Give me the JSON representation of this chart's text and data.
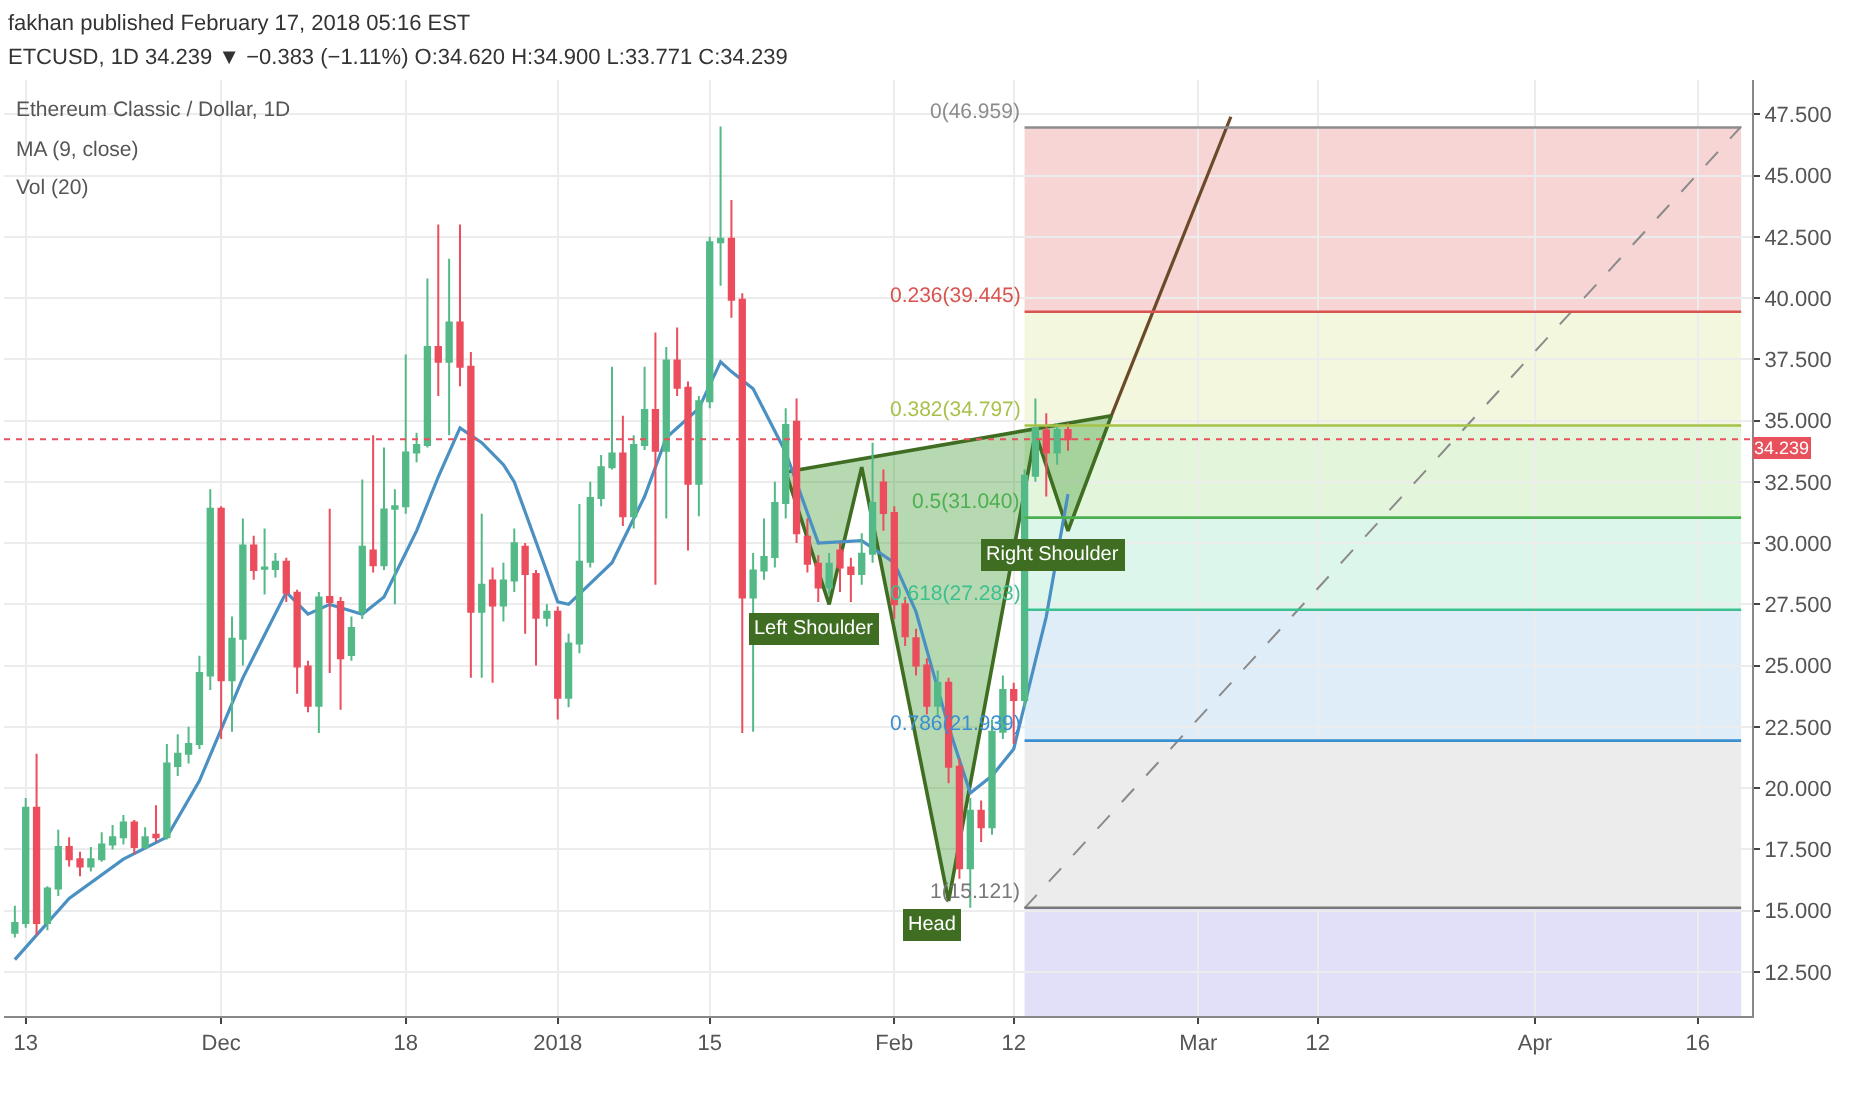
{
  "chart_data": {
    "type": "candlestick",
    "title": "fakhan published February 17, 2018 05:16 EST",
    "subtitle": "ETCUSD, 1D 34.239 ▼ −0.383 (−1.11%) O:34.620 H:34.900 L:33.771 C:34.239",
    "x": [
      "2017-11-12",
      "2017-11-13",
      "2017-11-14",
      "2017-11-15",
      "2017-11-16",
      "2017-11-17",
      "2017-11-18",
      "2017-11-19",
      "2017-11-20",
      "2017-11-21",
      "2017-11-22",
      "2017-11-23",
      "2017-11-24",
      "2017-11-25",
      "2017-11-26",
      "2017-11-27",
      "2017-11-28",
      "2017-11-29",
      "2017-11-30",
      "2017-12-01",
      "2017-12-02",
      "2017-12-03",
      "2017-12-04",
      "2017-12-05",
      "2017-12-06",
      "2017-12-07",
      "2017-12-08",
      "2017-12-09",
      "2017-12-10",
      "2017-12-11",
      "2017-12-12",
      "2017-12-13",
      "2017-12-14",
      "2017-12-15",
      "2017-12-16",
      "2017-12-17",
      "2017-12-18",
      "2017-12-19",
      "2017-12-20",
      "2017-12-21",
      "2017-12-22",
      "2017-12-23",
      "2017-12-24",
      "2017-12-25",
      "2017-12-26",
      "2017-12-27",
      "2017-12-28",
      "2017-12-29",
      "2017-12-30",
      "2017-12-31",
      "2018-01-01",
      "2018-01-02",
      "2018-01-03",
      "2018-01-04",
      "2018-01-05",
      "2018-01-06",
      "2018-01-07",
      "2018-01-08",
      "2018-01-09",
      "2018-01-10",
      "2018-01-11",
      "2018-01-12",
      "2018-01-13",
      "2018-01-14",
      "2018-01-15",
      "2018-01-16",
      "2018-01-17",
      "2018-01-18",
      "2018-01-19",
      "2018-01-20",
      "2018-01-21",
      "2018-01-22",
      "2018-01-23",
      "2018-01-24",
      "2018-01-25",
      "2018-01-26",
      "2018-01-27",
      "2018-01-28",
      "2018-01-29",
      "2018-01-30",
      "2018-01-31",
      "2018-02-01",
      "2018-02-02",
      "2018-02-03",
      "2018-02-04",
      "2018-02-05",
      "2018-02-06",
      "2018-02-07",
      "2018-02-08",
      "2018-02-09",
      "2018-02-10",
      "2018-02-11",
      "2018-02-12",
      "2018-02-13",
      "2018-02-14",
      "2018-02-15",
      "2018-02-16",
      "2018-02-17"
    ],
    "ohlc": [
      [
        14.1,
        15.2,
        13.9,
        14.5
      ],
      [
        14.5,
        19.6,
        14.3,
        19.2
      ],
      [
        19.2,
        21.4,
        14.0,
        14.5
      ],
      [
        14.5,
        16.0,
        14.2,
        15.9
      ],
      [
        15.9,
        18.3,
        15.6,
        17.6
      ],
      [
        17.6,
        18.0,
        16.8,
        17.1
      ],
      [
        17.1,
        17.4,
        16.4,
        16.8
      ],
      [
        16.8,
        17.6,
        16.6,
        17.1
      ],
      [
        17.1,
        18.2,
        17.0,
        17.7
      ],
      [
        17.7,
        18.5,
        17.5,
        18.0
      ],
      [
        18.0,
        18.9,
        17.7,
        18.6
      ],
      [
        18.6,
        18.7,
        17.3,
        17.6
      ],
      [
        17.6,
        18.4,
        17.5,
        18.0
      ],
      [
        18.1,
        19.3,
        17.8,
        18.0
      ],
      [
        18.0,
        21.8,
        17.9,
        21.0
      ],
      [
        20.9,
        22.2,
        20.5,
        21.4
      ],
      [
        21.4,
        22.5,
        21.0,
        21.8
      ],
      [
        21.8,
        25.4,
        21.6,
        24.7
      ],
      [
        24.6,
        32.2,
        24.0,
        31.4
      ],
      [
        31.4,
        31.5,
        22.0,
        24.4
      ],
      [
        24.4,
        27.0,
        22.3,
        26.1
      ],
      [
        26.1,
        31.0,
        25.0,
        29.9
      ],
      [
        29.9,
        30.3,
        28.5,
        28.9
      ],
      [
        28.95,
        30.6,
        27.9,
        29.0
      ],
      [
        28.94,
        29.6,
        28.6,
        29.24
      ],
      [
        29.24,
        29.4,
        27.6,
        27.97
      ],
      [
        27.97,
        28.1,
        23.85,
        24.96
      ],
      [
        24.96,
        25.2,
        23.1,
        23.36
      ],
      [
        23.36,
        28.0,
        22.25,
        27.78
      ],
      [
        27.8,
        31.4,
        24.7,
        27.6
      ],
      [
        27.6,
        27.8,
        23.2,
        25.3
      ],
      [
        25.43,
        27.0,
        25.2,
        26.53
      ],
      [
        27.2,
        32.6,
        26.9,
        29.85
      ],
      [
        29.7,
        34.4,
        28.8,
        29.1
      ],
      [
        29.1,
        33.9,
        28.9,
        31.37
      ],
      [
        31.4,
        32.2,
        27.5,
        31.5
      ],
      [
        31.5,
        37.7,
        31.2,
        33.7
      ],
      [
        33.7,
        34.5,
        33.3,
        34.0
      ],
      [
        34.0,
        40.8,
        33.9,
        38.0
      ],
      [
        38.0,
        43.0,
        36.0,
        37.4
      ],
      [
        37.4,
        41.6,
        34.4,
        39.0
      ],
      [
        39.0,
        43.0,
        36.4,
        37.2
      ],
      [
        37.2,
        37.8,
        24.5,
        27.2
      ],
      [
        27.2,
        31.2,
        24.5,
        28.3
      ],
      [
        28.47,
        29.0,
        24.3,
        27.45
      ],
      [
        27.45,
        29.2,
        26.8,
        28.47
      ],
      [
        28.47,
        30.6,
        28.0,
        29.99
      ],
      [
        29.85,
        30.0,
        26.3,
        28.74
      ],
      [
        28.74,
        28.9,
        25.0,
        26.95
      ],
      [
        26.95,
        27.5,
        26.6,
        27.2
      ],
      [
        27.2,
        27.4,
        22.8,
        23.69
      ],
      [
        23.69,
        26.3,
        23.3,
        25.9
      ],
      [
        25.9,
        31.6,
        25.5,
        29.24
      ],
      [
        29.24,
        32.5,
        29.0,
        31.84
      ],
      [
        31.84,
        33.6,
        31.5,
        33.1
      ],
      [
        33.1,
        37.2,
        33.0,
        33.66
      ],
      [
        33.66,
        35.2,
        30.7,
        31.1
      ],
      [
        31.1,
        34.4,
        30.6,
        34.0
      ],
      [
        34.0,
        37.2,
        33.8,
        35.43
      ],
      [
        35.43,
        38.6,
        28.3,
        33.77
      ],
      [
        33.77,
        38.0,
        31.0,
        37.45
      ],
      [
        37.45,
        38.8,
        36.0,
        36.34
      ],
      [
        36.34,
        36.6,
        29.7,
        32.42
      ],
      [
        32.42,
        36.0,
        31.1,
        35.79
      ],
      [
        35.79,
        42.5,
        35.5,
        42.28
      ],
      [
        42.28,
        47.0,
        40.5,
        42.42
      ],
      [
        42.42,
        44.0,
        39.2,
        39.93
      ],
      [
        39.93,
        40.2,
        22.25,
        27.78
      ],
      [
        27.78,
        29.6,
        22.3,
        28.88
      ],
      [
        28.88,
        31.0,
        28.5,
        29.43
      ],
      [
        29.43,
        32.5,
        29.0,
        31.64
      ],
      [
        31.64,
        35.5,
        31.0,
        34.82
      ],
      [
        34.95,
        35.9,
        30.0,
        30.4
      ],
      [
        30.26,
        31.0,
        28.8,
        29.16
      ],
      [
        29.16,
        29.5,
        27.6,
        28.19
      ],
      [
        28.19,
        29.6,
        27.9,
        29.16
      ],
      [
        29.7,
        30.0,
        28.0,
        29.0
      ],
      [
        29.0,
        29.4,
        27.6,
        28.74
      ],
      [
        28.74,
        30.4,
        28.3,
        29.57
      ],
      [
        29.57,
        34.1,
        29.2,
        31.64
      ],
      [
        32.47,
        33.0,
        30.5,
        31.23
      ],
      [
        31.23,
        31.5,
        26.9,
        27.5
      ],
      [
        27.5,
        27.8,
        25.8,
        26.2
      ],
      [
        26.12,
        26.5,
        24.6,
        25.0
      ],
      [
        25.0,
        25.3,
        23.0,
        23.36
      ],
      [
        23.36,
        24.8,
        22.9,
        24.3
      ],
      [
        24.3,
        24.5,
        20.2,
        20.87
      ],
      [
        20.87,
        21.2,
        16.3,
        16.73
      ],
      [
        16.73,
        19.6,
        15.121,
        19.08
      ],
      [
        19.08,
        19.5,
        17.8,
        18.4
      ],
      [
        18.4,
        22.8,
        18.1,
        22.3
      ],
      [
        22.3,
        24.6,
        22.0,
        24.0
      ],
      [
        24.0,
        24.3,
        21.8,
        23.6
      ],
      [
        23.6,
        33.0,
        23.3,
        32.75
      ],
      [
        32.75,
        35.9,
        32.5,
        34.7
      ],
      [
        34.6,
        35.3,
        31.9,
        33.7
      ],
      [
        33.7,
        34.9,
        33.2,
        34.62
      ],
      [
        34.62,
        34.9,
        33.771,
        34.239
      ]
    ],
    "series": [
      {
        "type": "line",
        "color": "#4a90c2",
        "x": [
          "2017-11-12",
          "2017-11-17",
          "2017-11-22",
          "2017-11-26",
          "2017-11-29",
          "2017-12-03",
          "2017-12-07",
          "2017-12-09",
          "2017-12-11",
          "2017-12-14",
          "2017-12-16",
          "2017-12-19",
          "2017-12-21",
          "2017-12-23",
          "2017-12-25",
          "2017-12-27",
          "2017-12-28",
          "2018-01-01",
          "2018-01-02",
          "2018-01-06",
          "2018-01-09",
          "2018-01-11",
          "2018-01-14",
          "2018-01-16",
          "2018-01-17",
          "2018-01-19",
          "2018-01-22",
          "2018-01-25",
          "2018-01-29",
          "2018-02-01",
          "2018-02-03",
          "2018-02-06",
          "2018-02-08",
          "2018-02-10",
          "2018-02-12",
          "2018-02-15",
          "2018-02-17"
        ],
        "values": [
          13.0,
          15.5,
          17.1,
          18.0,
          20.3,
          24.5,
          28.0,
          27.1,
          27.5,
          27.1,
          27.8,
          30.5,
          32.7,
          34.7,
          34.1,
          33.2,
          32.5,
          27.6,
          27.5,
          29.2,
          31.9,
          34.3,
          35.5,
          37.4,
          37.0,
          36.3,
          33.7,
          30.0,
          30.1,
          29.2,
          27.2,
          22.5,
          19.8,
          20.5,
          21.6,
          27.0,
          32.0
        ]
      },
      {
        "type": "area",
        "color": "#3f6e22",
        "x": [
          "2018-01-22",
          "2018-01-26",
          "2018-01-29",
          "2018-02-06",
          "2018-02-14",
          "2018-02-17",
          "2018-02-21",
          "2018-01-22"
        ],
        "values": [
          32.9,
          27.5,
          33.1,
          15.4,
          34.5,
          30.5,
          35.2,
          32.9
        ]
      },
      {
        "type": "line",
        "color": "#6b4a2a",
        "x": [
          "2018-02-21",
          "2018-03-04"
        ],
        "values": [
          35.2,
          47.4
        ]
      },
      {
        "type": "line",
        "color": "#8a8a8a",
        "line_style": "dashed",
        "x": [
          "2018-02-13",
          "2018-04-20"
        ],
        "values": [
          15.1,
          47.0
        ]
      }
    ],
    "bands": [
      {
        "axis": "y",
        "from": 46.959,
        "to": 39.445,
        "color": "#f4c7c7"
      },
      {
        "axis": "y",
        "from": 39.445,
        "to": 34.797,
        "color": "#eef4d2"
      },
      {
        "axis": "y",
        "from": 34.797,
        "to": 31.04,
        "color": "#d9f2cf"
      },
      {
        "axis": "y",
        "from": 31.04,
        "to": 27.283,
        "color": "#d2f3e6"
      },
      {
        "axis": "y",
        "from": 27.283,
        "to": 21.939,
        "color": "#d4e7f5"
      },
      {
        "axis": "y",
        "from": 21.939,
        "to": 15.121,
        "color": "#e6e6e6"
      },
      {
        "axis": "y",
        "from": 15.121,
        "to": 10.7,
        "color": "#d7d5f5"
      }
    ],
    "ref_lines": [
      {
        "axis": "y",
        "value": 46.959,
        "label": "0(46.959)",
        "color": "#8c8c8c"
      },
      {
        "axis": "y",
        "value": 39.445,
        "label": "0.236(39.445)",
        "color": "#d9534f"
      },
      {
        "axis": "y",
        "value": 34.797,
        "label": "0.382(34.797)",
        "color": "#a6c24a"
      },
      {
        "axis": "y",
        "value": 31.04,
        "label": "0.5(31.040)",
        "color": "#4caf50"
      },
      {
        "axis": "y",
        "value": 27.283,
        "label": "0.618(27.283)",
        "color": "#3dbf8f"
      },
      {
        "axis": "y",
        "value": 21.939,
        "label": "0.786(21.939)",
        "color": "#3a8fd0"
      },
      {
        "axis": "y",
        "value": 15.121,
        "label": "1(15.121)",
        "color": "#787878"
      },
      {
        "axis": "y",
        "value": 34.239,
        "label": "34.239",
        "color": "#e8505b",
        "line_style": "dotted"
      }
    ],
    "annotations": [
      "Ethereum Classic / Dollar, 1D",
      "MA (9, close)",
      "Vol (20)",
      {
        "text": "Left Shoulder",
        "x": "2018-01-26",
        "y": 27.5
      },
      {
        "text": "Head",
        "x": "2018-02-06",
        "y": 15.4
      },
      {
        "text": "Right Shoulder",
        "x": "2018-02-17",
        "y": 30.5
      }
    ],
    "xlim": [
      "2017-11-11",
      "2018-04-21"
    ],
    "xticks": [
      {
        "value": "2017-11-13",
        "label": "13"
      },
      {
        "value": "2017-12-01",
        "label": "Dec"
      },
      {
        "value": "2017-12-18",
        "label": "18"
      },
      {
        "value": "2018-01-01",
        "label": "2018"
      },
      {
        "value": "2018-01-15",
        "label": "15"
      },
      {
        "value": "2018-02-01",
        "label": "Feb"
      },
      {
        "value": "2018-02-12",
        "label": "12"
      },
      {
        "value": "2018-03-01",
        "label": "Mar"
      },
      {
        "value": "2018-03-12",
        "label": "12"
      },
      {
        "value": "2018-04-01",
        "label": "Apr"
      },
      {
        "value": "2018-04-16",
        "label": "16"
      }
    ],
    "ylim": [
      10.7,
      48.9
    ],
    "yticks": [
      {
        "value": 12.5,
        "label": "12.500"
      },
      {
        "value": 15,
        "label": "15.000"
      },
      {
        "value": 17.5,
        "label": "17.500"
      },
      {
        "value": 20,
        "label": "20.000"
      },
      {
        "value": 22.5,
        "label": "22.500"
      },
      {
        "value": 25,
        "label": "25.000"
      },
      {
        "value": 27.5,
        "label": "27.500"
      },
      {
        "value": 30,
        "label": "30.000"
      },
      {
        "value": 32.5,
        "label": "32.500"
      },
      {
        "value": 35,
        "label": "35.000"
      },
      {
        "value": 37.5,
        "label": "37.500"
      },
      {
        "value": 40,
        "label": "40.000"
      },
      {
        "value": 42.5,
        "label": "42.500"
      },
      {
        "value": 45,
        "label": "45.000"
      },
      {
        "value": 47.5,
        "label": "47.500"
      }
    ],
    "grid": true
  }
}
